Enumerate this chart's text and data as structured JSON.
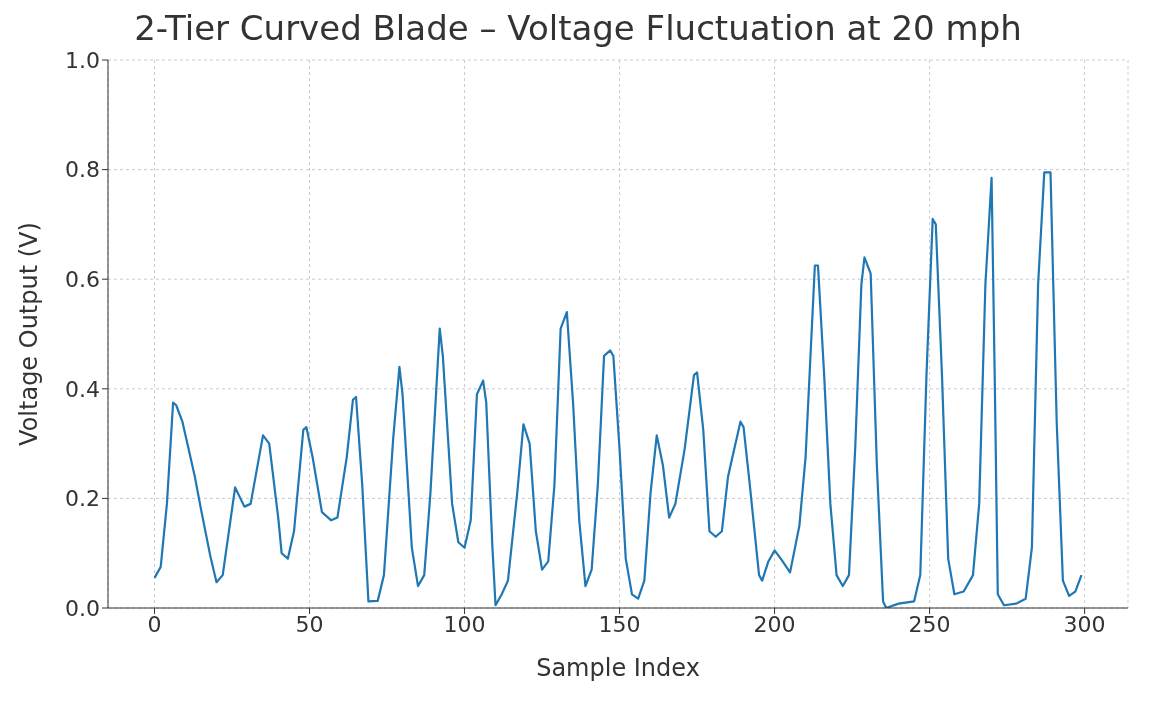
{
  "chart_data": {
    "type": "line",
    "title": "2-Tier Curved Blade – Voltage Fluctuation at 20 mph",
    "xlabel": "Sample Index",
    "ylabel": "Voltage Output (V)",
    "x": [
      0,
      2,
      4,
      6,
      7,
      9,
      11,
      13,
      15,
      18,
      20,
      22,
      26,
      29,
      31,
      35,
      37,
      40,
      41,
      43,
      45,
      48,
      49,
      51,
      54,
      57,
      59,
      62,
      64,
      65,
      67,
      69,
      72,
      74,
      77,
      79,
      80,
      83,
      85,
      87,
      89,
      92,
      93,
      96,
      98,
      100,
      102,
      104,
      106,
      107,
      109,
      110,
      112,
      114,
      117,
      119,
      121,
      123,
      125,
      127,
      129,
      131,
      133,
      135,
      137,
      139,
      141,
      143,
      145,
      147,
      148,
      150,
      152,
      154,
      156,
      158,
      160,
      162,
      164,
      166,
      168,
      171,
      174,
      175,
      177,
      179,
      181,
      183,
      185,
      187,
      189,
      190,
      192,
      195,
      196,
      198,
      200,
      202,
      205,
      208,
      210,
      213,
      214,
      216,
      218,
      220,
      222,
      224,
      226,
      228,
      229,
      231,
      233,
      235,
      236,
      240,
      245,
      247,
      249,
      251,
      252,
      254,
      256,
      258,
      261,
      264,
      266,
      268,
      270,
      271,
      272,
      274,
      278,
      281,
      283,
      285,
      287,
      289,
      291,
      293,
      295,
      297,
      299
    ],
    "series": [
      {
        "color": "#1f77b4",
        "values": [
          0.055,
          0.075,
          0.19,
          0.375,
          0.37,
          0.34,
          0.29,
          0.24,
          0.18,
          0.095,
          0.047,
          0.06,
          0.22,
          0.185,
          0.19,
          0.315,
          0.3,
          0.16,
          0.1,
          0.09,
          0.14,
          0.325,
          0.33,
          0.275,
          0.175,
          0.16,
          0.165,
          0.275,
          0.38,
          0.385,
          0.225,
          0.012,
          0.013,
          0.06,
          0.31,
          0.44,
          0.39,
          0.11,
          0.04,
          0.06,
          0.21,
          0.51,
          0.46,
          0.19,
          0.12,
          0.11,
          0.16,
          0.39,
          0.415,
          0.375,
          0.11,
          0.005,
          0.025,
          0.05,
          0.21,
          0.335,
          0.3,
          0.14,
          0.07,
          0.085,
          0.225,
          0.51,
          0.54,
          0.375,
          0.16,
          0.04,
          0.07,
          0.225,
          0.46,
          0.47,
          0.46,
          0.29,
          0.09,
          0.025,
          0.017,
          0.05,
          0.21,
          0.315,
          0.26,
          0.165,
          0.19,
          0.29,
          0.425,
          0.43,
          0.325,
          0.14,
          0.13,
          0.14,
          0.24,
          0.29,
          0.34,
          0.33,
          0.225,
          0.06,
          0.05,
          0.085,
          0.105,
          0.09,
          0.065,
          0.15,
          0.275,
          0.625,
          0.625,
          0.425,
          0.19,
          0.06,
          0.04,
          0.06,
          0.29,
          0.59,
          0.64,
          0.61,
          0.26,
          0.012,
          0.0,
          0.008,
          0.012,
          0.06,
          0.425,
          0.71,
          0.7,
          0.425,
          0.09,
          0.025,
          0.03,
          0.06,
          0.19,
          0.59,
          0.785,
          0.425,
          0.025,
          0.005,
          0.008,
          0.017,
          0.11,
          0.59,
          0.795,
          0.795,
          0.34,
          0.05,
          0.022,
          0.03,
          0.06
        ]
      }
    ],
    "xlim": [
      -15,
      314
    ],
    "ylim": [
      0,
      1
    ],
    "xticks": [
      0,
      50,
      100,
      150,
      200,
      250,
      300
    ],
    "yticks": [
      {
        "value": 0,
        "label": "0.0"
      },
      {
        "value": 0.2,
        "label": "0.2"
      },
      {
        "value": 0.4,
        "label": "0.4"
      },
      {
        "value": 0.6,
        "label": "0.6"
      },
      {
        "value": 0.8,
        "label": "0.8"
      },
      {
        "value": 1,
        "label": "1.0"
      }
    ],
    "grid": true,
    "line_style": "solid"
  }
}
